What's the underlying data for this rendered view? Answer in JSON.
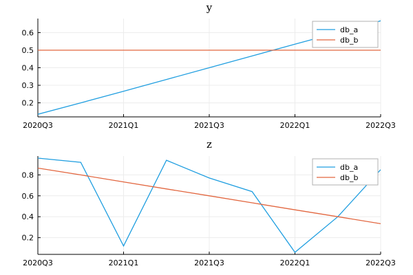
{
  "colors": {
    "db_a": "#1f9ee0",
    "db_b": "#e2663f",
    "grid": "#ececec",
    "axis": "#000000"
  },
  "chart_data": [
    {
      "type": "line",
      "title": "y",
      "x": [
        "2020Q3",
        "2020Q4",
        "2021Q1",
        "2021Q2",
        "2021Q3",
        "2021Q4",
        "2022Q1",
        "2022Q2",
        "2022Q3"
      ],
      "xticks": [
        "2020Q3",
        "2021Q1",
        "2021Q3",
        "2022Q1",
        "2022Q3"
      ],
      "yticks": [
        0.2,
        0.3,
        0.4,
        0.5,
        0.6
      ],
      "ylim": [
        0.12,
        0.68
      ],
      "grid": true,
      "legend_position": "top-right",
      "series": [
        {
          "name": "db_a",
          "values": [
            0.135,
            0.2,
            0.266,
            0.333,
            0.4,
            0.467,
            0.534,
            0.6,
            0.667
          ]
        },
        {
          "name": "db_b",
          "values": [
            0.5,
            0.5,
            0.5,
            0.5,
            0.5,
            0.5,
            0.5,
            0.5,
            0.5
          ]
        }
      ]
    },
    {
      "type": "line",
      "title": "z",
      "x": [
        "2020Q3",
        "2020Q4",
        "2021Q1",
        "2021Q2",
        "2021Q3",
        "2021Q4",
        "2022Q1",
        "2022Q2",
        "2022Q3"
      ],
      "xticks": [
        "2020Q3",
        "2021Q1",
        "2021Q3",
        "2022Q1",
        "2022Q3"
      ],
      "yticks": [
        0.2,
        0.4,
        0.6,
        0.8
      ],
      "ylim": [
        0.04,
        0.98
      ],
      "grid": true,
      "legend_position": "top-right",
      "series": [
        {
          "name": "db_a",
          "values": [
            0.96,
            0.92,
            0.12,
            0.94,
            0.77,
            0.64,
            0.06,
            0.4,
            0.85
          ]
        },
        {
          "name": "db_b",
          "values": [
            0.865,
            0.8,
            0.733,
            0.666,
            0.6,
            0.533,
            0.466,
            0.4,
            0.333
          ]
        }
      ]
    }
  ]
}
